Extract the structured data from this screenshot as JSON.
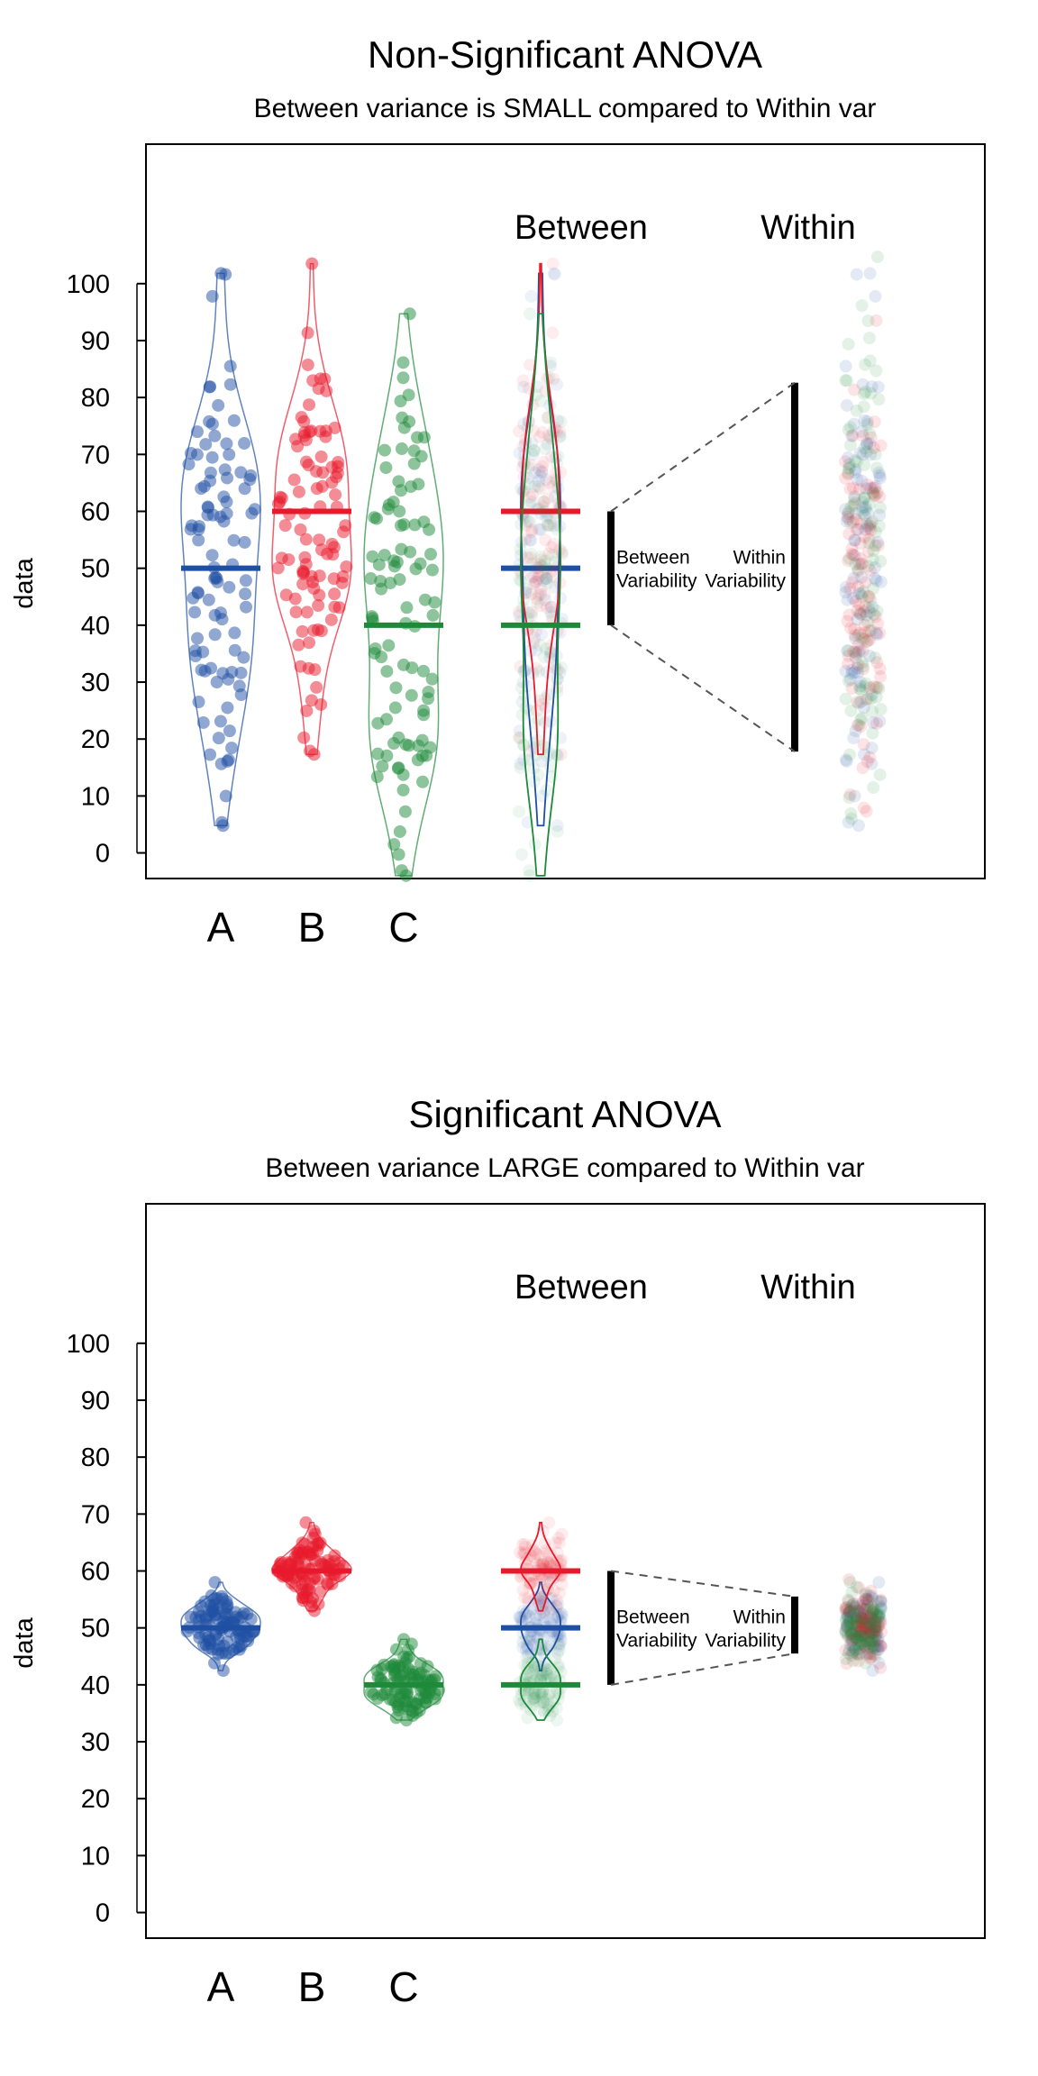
{
  "chart_data": [
    {
      "type": "violin-strip",
      "title": "Non-Significant ANOVA",
      "subtitle": "Between variance is SMALL compared to Within var",
      "ylabel": "data",
      "ylim": [
        -4.5,
        124.5
      ],
      "yticks": [
        0,
        10,
        20,
        30,
        40,
        50,
        60,
        70,
        80,
        90,
        100
      ],
      "categories": [
        "A",
        "B",
        "C"
      ],
      "series": [
        {
          "name": "A",
          "color": "#1f4fa3",
          "mean": 50,
          "sd": 20,
          "min": 4.8,
          "max": 101.8,
          "n": 100,
          "seed": 11
        },
        {
          "name": "B",
          "color": "#e8192c",
          "mean": 60,
          "sd": 16,
          "min": 17.3,
          "max": 103.5,
          "n": 100,
          "seed": 23
        },
        {
          "name": "C",
          "color": "#1d8a3a",
          "mean": 40,
          "sd": 19,
          "min": -4.0,
          "max": 94.7,
          "n": 100,
          "seed": 37
        }
      ],
      "between_range": [
        40,
        60
      ],
      "within_range": [
        17.8,
        82.6
      ],
      "headers": {
        "between": "Between",
        "within": "Within"
      },
      "between_label": [
        "Between",
        "Variability"
      ],
      "within_label": [
        "Within",
        "Variability"
      ]
    },
    {
      "type": "violin-strip",
      "title": "Significant ANOVA",
      "subtitle": "Between variance LARGE compared to Within var",
      "ylabel": "data",
      "ylim": [
        -4.5,
        124.5
      ],
      "yticks": [
        0,
        10,
        20,
        30,
        40,
        50,
        60,
        70,
        80,
        90,
        100
      ],
      "categories": [
        "A",
        "B",
        "C"
      ],
      "series": [
        {
          "name": "A",
          "color": "#1f4fa3",
          "mean": 50,
          "sd": 3,
          "min": 42.5,
          "max": 58.0,
          "n": 100,
          "seed": 51
        },
        {
          "name": "B",
          "color": "#e8192c",
          "mean": 60,
          "sd": 3,
          "min": 53.0,
          "max": 68.5,
          "n": 100,
          "seed": 63
        },
        {
          "name": "C",
          "color": "#1d8a3a",
          "mean": 40,
          "sd": 3,
          "min": 33.8,
          "max": 48.0,
          "n": 100,
          "seed": 77
        }
      ],
      "between_range": [
        40,
        60
      ],
      "within_range": [
        45.5,
        55.5
      ],
      "headers": {
        "between": "Between",
        "within": "Within"
      },
      "between_label": [
        "Between",
        "Variability"
      ],
      "within_label": [
        "Within",
        "Variability"
      ]
    }
  ]
}
